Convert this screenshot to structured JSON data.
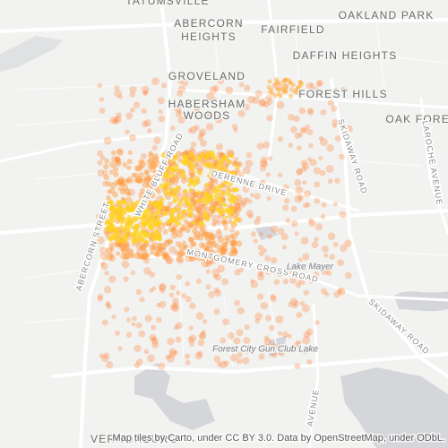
{
  "places": [
    [
      "TATUMSVILLE"
    ],
    [
      "ABERCORN",
      "HEIGHTS"
    ],
    [
      "FAIRFIELD"
    ],
    [
      "OAKLAND PARK"
    ],
    [
      "DAFFIN HEIGHTS"
    ],
    [
      "GROVELAND"
    ],
    [
      "FOREST HILLS"
    ],
    [
      "HABERSHAM",
      "WOODS"
    ],
    [
      "OAK FOREST"
    ],
    [
      "VERNONBURG"
    ]
  ],
  "roads": [
    "SKIDAWAY ROAD",
    "LAROCHE AVENUE",
    "ABERCORN STREET",
    "WHITE BLUFF ROAD",
    "DERENNE DRIVE",
    "MONTGOMERY CROSS ROAD",
    "SKIDAWAY ROAD",
    "AVENUE"
  ],
  "water": [
    "Lake Mayer",
    "Forest City Gun Club Lake"
  ],
  "attribution": "Map tiles by Carto, under CC BY 3.0. Data by OpenStreetMap, under ODbL."
}
